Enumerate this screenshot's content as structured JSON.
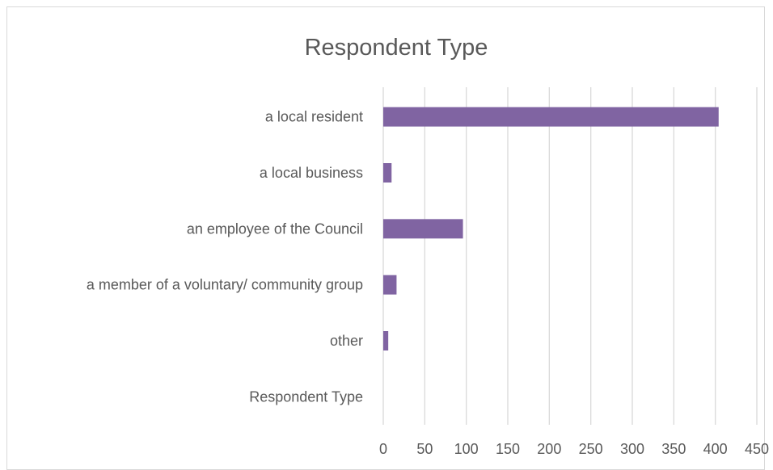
{
  "chart_data": {
    "type": "bar",
    "orientation": "horizontal",
    "title": "Respondent Type",
    "categories": [
      "a local resident",
      "a local business",
      "an employee of the Council",
      "a member of a voluntary/ community group",
      "other",
      "Respondent Type"
    ],
    "values": [
      404,
      10,
      96,
      16,
      6,
      0
    ],
    "xlim": [
      0,
      450
    ],
    "x_ticks": [
      "0",
      "50",
      "100",
      "150",
      "200",
      "250",
      "300",
      "350",
      "400",
      "450"
    ],
    "grid": true,
    "legend": "none",
    "colors": {
      "bar": "#8064a2",
      "grid": "#d9d9d9",
      "text": "#595959"
    }
  }
}
